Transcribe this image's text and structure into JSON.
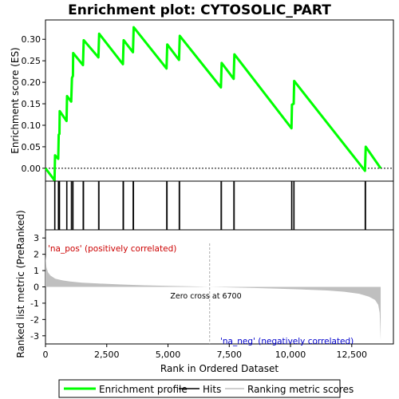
{
  "chart_data": {
    "type": "line",
    "title": "Enrichment plot: CYTOSOLIC_PART",
    "es_panel": {
      "ylabel": "Enrichment score (ES)",
      "ylim": [
        -0.03,
        0.345
      ],
      "yticks": [
        0.0,
        0.05,
        0.1,
        0.15,
        0.2,
        0.25,
        0.3
      ],
      "ytick_labels": [
        "0.00",
        "0.05",
        "0.10",
        "0.15",
        "0.20",
        "0.25",
        "0.30"
      ],
      "series": [
        {
          "name": "Enrichment profile",
          "color": "#00ff00",
          "points": [
            [
              0,
              0.0
            ],
            [
              370,
              -0.028
            ],
            [
              390,
              0.03
            ],
            [
              520,
              0.022
            ],
            [
              540,
              0.078
            ],
            [
              570,
              0.08
            ],
            [
              580,
              0.133
            ],
            [
              860,
              0.11
            ],
            [
              880,
              0.168
            ],
            [
              1050,
              0.155
            ],
            [
              1080,
              0.21
            ],
            [
              1120,
              0.215
            ],
            [
              1130,
              0.268
            ],
            [
              1530,
              0.24
            ],
            [
              1560,
              0.298
            ],
            [
              2160,
              0.258
            ],
            [
              2190,
              0.313
            ],
            [
              3160,
              0.242
            ],
            [
              3190,
              0.298
            ],
            [
              3570,
              0.27
            ],
            [
              3600,
              0.328
            ],
            [
              4940,
              0.232
            ],
            [
              4970,
              0.288
            ],
            [
              5450,
              0.252
            ],
            [
              5480,
              0.308
            ],
            [
              7160,
              0.188
            ],
            [
              7190,
              0.245
            ],
            [
              7680,
              0.208
            ],
            [
              7710,
              0.265
            ],
            [
              10040,
              0.093
            ],
            [
              10060,
              0.148
            ],
            [
              10130,
              0.15
            ],
            [
              10150,
              0.203
            ],
            [
              13040,
              -0.006
            ],
            [
              13070,
              0.05
            ],
            [
              13680,
              0.0
            ]
          ]
        }
      ]
    },
    "hits": [
      370,
      390,
      520,
      540,
      570,
      580,
      860,
      880,
      1050,
      1080,
      1120,
      1130,
      1530,
      1560,
      2160,
      2190,
      3160,
      3190,
      3570,
      3600,
      4940,
      4970,
      5450,
      5480,
      7160,
      7190,
      7680,
      7710,
      10040,
      10060,
      10130,
      10150,
      13040,
      13070
    ],
    "color_bar": {
      "segments": [
        {
          "from": 0,
          "to": 1000,
          "color": "#ff0000"
        },
        {
          "from": 1000,
          "to": 2100,
          "color": "#ff3333"
        },
        {
          "from": 2100,
          "to": 3400,
          "color": "#ff6677"
        },
        {
          "from": 3400,
          "to": 4700,
          "color": "#ff8899"
        },
        {
          "from": 4700,
          "to": 6700,
          "color": "#ffbbdd"
        },
        {
          "from": 6700,
          "to": 8700,
          "color": "#e6e2f6"
        },
        {
          "from": 8700,
          "to": 10200,
          "color": "#c6c0f0"
        },
        {
          "from": 10200,
          "to": 11200,
          "color": "#9a90ee"
        },
        {
          "from": 11200,
          "to": 13200,
          "color": "#6a5ce6"
        },
        {
          "from": 13200,
          "to": 13700,
          "color": "#2a10d8"
        }
      ]
    },
    "metric_panel": {
      "ylabel": "Ranked list metric (PreRanked)",
      "ylim": [
        -3.5,
        3.5
      ],
      "yticks": [
        -3,
        -2,
        -1,
        0,
        1,
        2,
        3
      ],
      "ytick_labels": [
        "-3",
        "-2",
        "-1",
        "0",
        "1",
        "2",
        "3"
      ],
      "curve": [
        [
          0,
          1.9
        ],
        [
          40,
          1.2
        ],
        [
          100,
          0.9
        ],
        [
          200,
          0.7
        ],
        [
          400,
          0.5
        ],
        [
          700,
          0.4
        ],
        [
          1000,
          0.33
        ],
        [
          1500,
          0.26
        ],
        [
          2000,
          0.22
        ],
        [
          3000,
          0.15
        ],
        [
          4000,
          0.1
        ],
        [
          5000,
          0.06
        ],
        [
          6000,
          0.03
        ],
        [
          6700,
          0.0
        ],
        [
          7500,
          -0.03
        ],
        [
          8500,
          -0.07
        ],
        [
          9500,
          -0.11
        ],
        [
          10500,
          -0.16
        ],
        [
          11500,
          -0.22
        ],
        [
          12200,
          -0.3
        ],
        [
          12800,
          -0.42
        ],
        [
          13200,
          -0.6
        ],
        [
          13450,
          -0.8
        ],
        [
          13580,
          -1.1
        ],
        [
          13640,
          -1.6
        ],
        [
          13680,
          -3.3
        ]
      ],
      "fill_color": "#bfbfbf",
      "pos_label": "'na_pos' (positively correlated)",
      "neg_label": "'na_neg' (negatively correlated)",
      "zero_cross_label": "Zero cross at 6700",
      "zero_cross": 6700
    },
    "xlabel": "Rank in Ordered Dataset",
    "xlim": [
      0,
      14200
    ],
    "xticks": [
      0,
      2500,
      5000,
      7500,
      10000,
      12500
    ],
    "xtick_labels": [
      "0",
      "2,500",
      "5,000",
      "7,500",
      "10,000",
      "12,500"
    ],
    "legend": {
      "placement": "bottom",
      "items": [
        {
          "label": "Enrichment profile",
          "color": "#00ff00"
        },
        {
          "label": "Hits",
          "color": "#000000"
        },
        {
          "label": "Ranking metric scores",
          "color": "#bfbfbf"
        }
      ]
    }
  }
}
